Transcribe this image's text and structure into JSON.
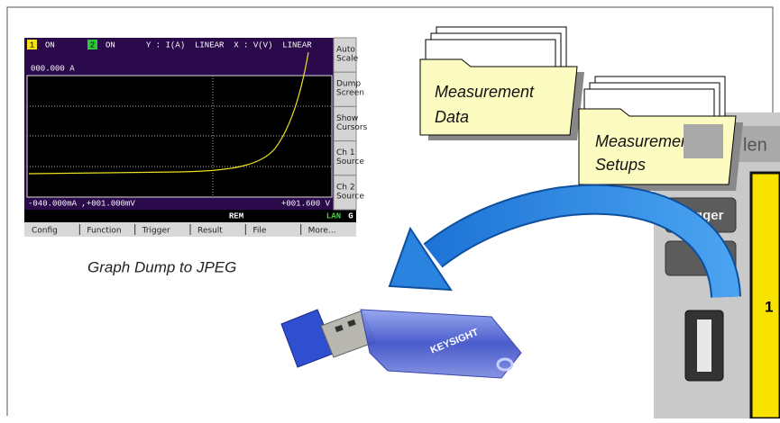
{
  "screen": {
    "header": {
      "ch1": "1",
      "ch1_state": "ON",
      "ch2": "2",
      "ch2_state": "ON",
      "axes": "Y : I(A)  LINEAR  X : V(V)  LINEAR"
    },
    "y_readout": "000.000 A",
    "cursor_readout": "-040.000mA ,+001.000mV",
    "x_readout": "+001.600 V",
    "status": "REM",
    "lan": "LAN",
    "g": "G",
    "softkeys": [
      [
        "Auto",
        "Scale"
      ],
      [
        "Dump",
        "Screen"
      ],
      [
        "Show",
        "Cursors"
      ],
      [
        "Ch 1",
        "Source"
      ],
      [
        "Ch 2",
        "Source"
      ]
    ],
    "menu": [
      "Config",
      "Function",
      "Trigger",
      "Result",
      "File",
      "More..."
    ]
  },
  "caption": "Graph Dump to JPEG",
  "folders": [
    {
      "lines": [
        "Measurement",
        "Data"
      ]
    },
    {
      "lines": [
        "Measurement",
        "Setups"
      ]
    }
  ],
  "usb_brand": "KEYSIGHT",
  "instrument": {
    "button": "Trigger",
    "panel_text": "len",
    "digit": "1"
  }
}
